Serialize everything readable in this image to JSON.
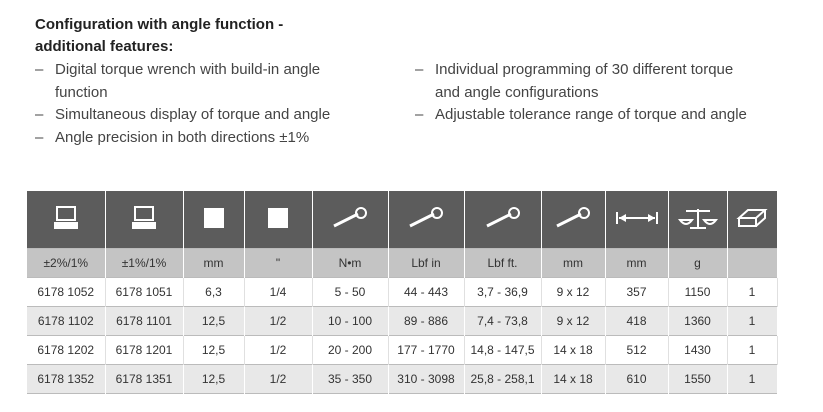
{
  "header": {
    "title": [
      "Configuration with angle function -",
      "additional features:"
    ]
  },
  "features": {
    "left": [
      "Digital torque wrench with build-in angle function",
      "Simultaneous display of torque and angle",
      "Angle precision in both directions ±1%"
    ],
    "right": [
      "Individual programming of 30 different torque and angle configurations",
      "Adjustable tolerance range of torque and angle"
    ]
  },
  "table": {
    "units": [
      "±2%/1%",
      "±1%/1%",
      "mm",
      "\"",
      "N•m",
      "Lbf in",
      "Lbf ft.",
      "mm",
      "mm",
      "g"
    ],
    "rows": [
      [
        "6178 1052",
        "6178 1051",
        "6,3",
        "1/4",
        "5 - 50",
        "44 - 443",
        "3,7 - 36,9",
        "9 x 12",
        "357",
        "1150",
        "1"
      ],
      [
        "6178 1102",
        "6178 1101",
        "12,5",
        "1/2",
        "10 - 100",
        "89 - 886",
        "7,4 - 73,8",
        "9 x 12",
        "418",
        "1360",
        "1"
      ],
      [
        "6178 1202",
        "6178 1201",
        "12,5",
        "1/2",
        "20 - 200",
        "177 - 1770",
        "14,8 - 147,5",
        "14 x 18",
        "512",
        "1430",
        "1"
      ],
      [
        "6178 1352",
        "6178 1351",
        "12,5",
        "1/2",
        "35 - 350",
        "310 - 3098",
        "25,8 - 258,1",
        "14 x 18",
        "610",
        "1550",
        "1"
      ]
    ]
  }
}
